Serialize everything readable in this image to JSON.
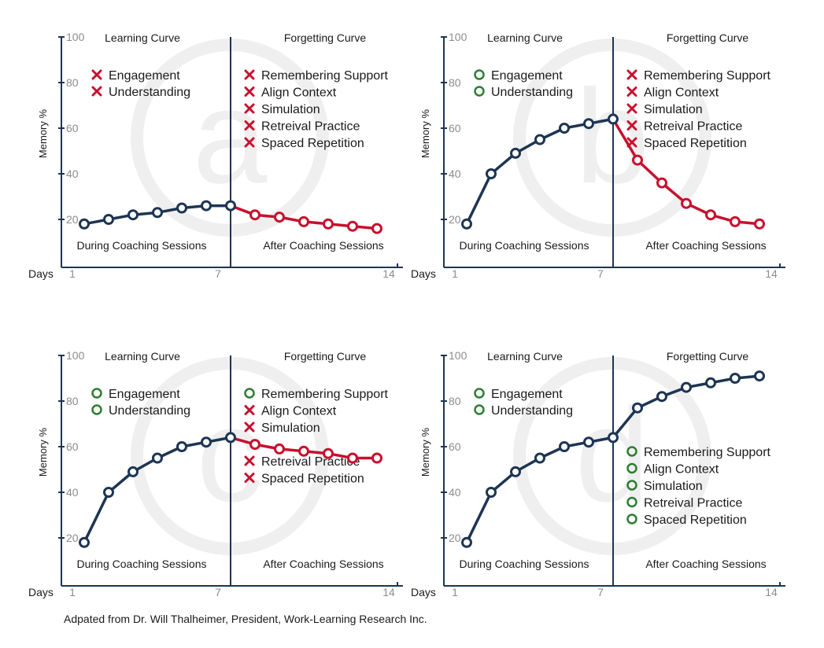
{
  "chart_data": [
    {
      "type": "line",
      "watermark": "a",
      "y_axis_label": "Memory %",
      "x_axis_label": "Days",
      "ylim": [
        0,
        100
      ],
      "y_ticks": [
        "20",
        "40",
        "60",
        "80",
        "100"
      ],
      "x_tick_labels": [
        "1",
        "7",
        "14"
      ],
      "x_ticks": [
        1,
        7,
        14
      ],
      "learning_title": "Learning Curve",
      "forgetting_title": "Forgetting Curve",
      "during_label": "During Coaching Sessions",
      "after_label": "After Coaching Sessions",
      "learning_series": {
        "x": [
          1,
          2,
          3,
          4,
          5,
          6,
          7
        ],
        "y": [
          18,
          20,
          22,
          23,
          25,
          26,
          26
        ],
        "color": "#1d3553"
      },
      "forgetting_series": {
        "x": [
          7,
          8,
          9,
          10,
          11,
          12,
          13
        ],
        "y": [
          26,
          22,
          21,
          19,
          18,
          17,
          16
        ],
        "color": "#c8102e"
      },
      "learning_factors": [
        {
          "label": "Engagement",
          "status": "x"
        },
        {
          "label": "Understanding",
          "status": "x"
        }
      ],
      "forgetting_factors": [
        {
          "label": "Remembering Support",
          "status": "x"
        },
        {
          "label": "Align Context",
          "status": "x"
        },
        {
          "label": "Simulation",
          "status": "x"
        },
        {
          "label": "Retreival Practice",
          "status": "x"
        },
        {
          "label": "Spaced Repetition",
          "status": "x"
        }
      ]
    },
    {
      "type": "line",
      "watermark": "b",
      "y_axis_label": "Memory %",
      "x_axis_label": "Days",
      "ylim": [
        0,
        100
      ],
      "y_ticks": [
        "20",
        "40",
        "60",
        "80",
        "100"
      ],
      "x_tick_labels": [
        "1",
        "7",
        "14"
      ],
      "x_ticks": [
        1,
        7,
        14
      ],
      "learning_title": "Learning Curve",
      "forgetting_title": "Forgetting Curve",
      "during_label": "During Coaching Sessions",
      "after_label": "After Coaching Sessions",
      "learning_series": {
        "x": [
          1,
          2,
          3,
          4,
          5,
          6,
          7
        ],
        "y": [
          18,
          40,
          49,
          55,
          60,
          62,
          64
        ],
        "color": "#1d3553"
      },
      "forgetting_series": {
        "x": [
          7,
          8,
          9,
          10,
          11,
          12,
          13
        ],
        "y": [
          64,
          46,
          36,
          27,
          22,
          19,
          18
        ],
        "color": "#c8102e"
      },
      "learning_factors": [
        {
          "label": "Engagement",
          "status": "o"
        },
        {
          "label": "Understanding",
          "status": "o"
        }
      ],
      "forgetting_factors": [
        {
          "label": "Remembering Support",
          "status": "x"
        },
        {
          "label": "Align Context",
          "status": "x"
        },
        {
          "label": "Simulation",
          "status": "x"
        },
        {
          "label": "Retreival Practice",
          "status": "x"
        },
        {
          "label": "Spaced Repetition",
          "status": "x"
        }
      ]
    },
    {
      "type": "line",
      "watermark": "c",
      "y_axis_label": "Memory %",
      "x_axis_label": "Days",
      "ylim": [
        0,
        100
      ],
      "y_ticks": [
        "20",
        "40",
        "60",
        "80",
        "100"
      ],
      "x_tick_labels": [
        "1",
        "7",
        "14"
      ],
      "x_ticks": [
        1,
        7,
        14
      ],
      "learning_title": "Learning Curve",
      "forgetting_title": "Forgetting Curve",
      "during_label": "During Coaching Sessions",
      "after_label": "After Coaching Sessions",
      "learning_series": {
        "x": [
          1,
          2,
          3,
          4,
          5,
          6,
          7
        ],
        "y": [
          18,
          40,
          49,
          55,
          60,
          62,
          64
        ],
        "color": "#1d3553"
      },
      "forgetting_series": {
        "x": [
          7,
          8,
          9,
          10,
          11,
          12,
          13
        ],
        "y": [
          64,
          61,
          59,
          58,
          57,
          55,
          55
        ],
        "color": "#c8102e"
      },
      "learning_factors": [
        {
          "label": "Engagement",
          "status": "o"
        },
        {
          "label": "Understanding",
          "status": "o"
        }
      ],
      "forgetting_factors": [
        {
          "label": "Remembering Support",
          "status": "o"
        },
        {
          "label": "Align Context",
          "status": "x"
        },
        {
          "label": "Simulation",
          "status": "x"
        },
        {
          "label": "",
          "status": ""
        },
        {
          "label": "Retreival Practice",
          "status": "x"
        },
        {
          "label": "Spaced Repetition",
          "status": "x"
        }
      ]
    },
    {
      "type": "line",
      "watermark": "d",
      "y_axis_label": "Memory %",
      "x_axis_label": "Days",
      "ylim": [
        0,
        100
      ],
      "y_ticks": [
        "20",
        "40",
        "60",
        "80",
        "100"
      ],
      "x_tick_labels": [
        "1",
        "7",
        "14"
      ],
      "x_ticks": [
        1,
        7,
        14
      ],
      "learning_title": "Learning Curve",
      "forgetting_title": "Forgetting Curve",
      "during_label": "During Coaching Sessions",
      "after_label": "After Coaching Sessions",
      "learning_series": {
        "x": [
          1,
          2,
          3,
          4,
          5,
          6,
          7
        ],
        "y": [
          18,
          40,
          49,
          55,
          60,
          62,
          64
        ],
        "color": "#1d3553"
      },
      "forgetting_series": {
        "x": [
          7,
          8,
          9,
          10,
          11,
          12,
          13
        ],
        "y": [
          64,
          77,
          82,
          86,
          88,
          90,
          91
        ],
        "color": "#1d3553"
      },
      "learning_factors": [
        {
          "label": "Engagement",
          "status": "o"
        },
        {
          "label": "Understanding",
          "status": "o"
        }
      ],
      "forgetting_factors": [
        {
          "label": "Remembering Support",
          "status": "o"
        },
        {
          "label": "Align Context",
          "status": "o"
        },
        {
          "label": "Simulation",
          "status": "o"
        },
        {
          "label": "Retreival Practice",
          "status": "o"
        },
        {
          "label": "Spaced Repetition",
          "status": "o"
        }
      ]
    }
  ],
  "footer": {
    "attribution": "Adpated from Dr. Will Thalheimer, President, Work-Learning Research Inc."
  },
  "colors": {
    "axis": "#1d3553",
    "tick_text": "#8c8c8c",
    "x_mark": "#c8102e",
    "o_mark": "#2e7d32",
    "watermark": "#efefef"
  }
}
